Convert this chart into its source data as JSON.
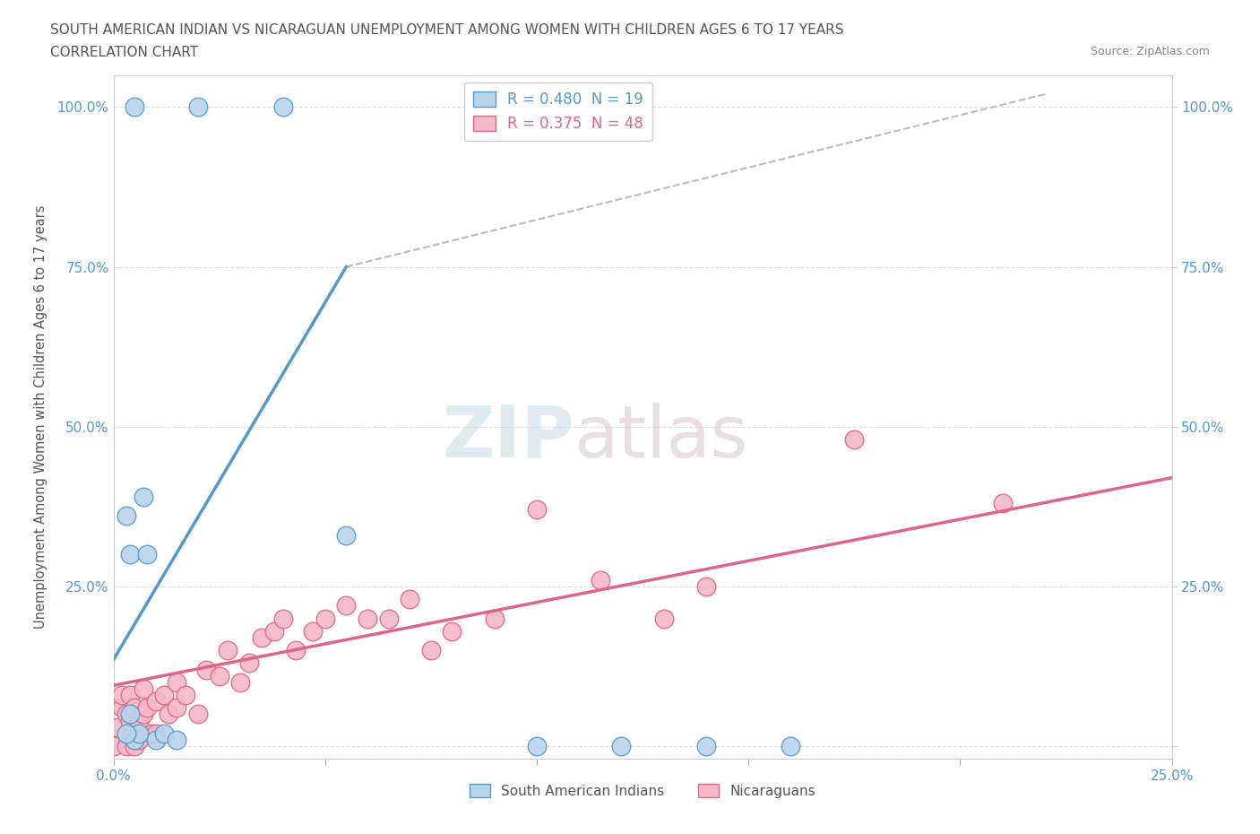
{
  "title_line1": "SOUTH AMERICAN INDIAN VS NICARAGUAN UNEMPLOYMENT AMONG WOMEN WITH CHILDREN AGES 6 TO 17 YEARS",
  "title_line2": "CORRELATION CHART",
  "source_text": "Source: ZipAtlas.com",
  "ylabel": "Unemployment Among Women with Children Ages 6 to 17 years",
  "xlim": [
    0.0,
    0.25
  ],
  "ylim": [
    -0.02,
    1.05
  ],
  "xtick_vals": [
    0.0,
    0.05,
    0.1,
    0.15,
    0.2,
    0.25
  ],
  "xtick_labels": [
    "0.0%",
    "",
    "",
    "",
    "",
    "25.0%"
  ],
  "ytick_vals": [
    0.0,
    0.25,
    0.5,
    0.75,
    1.0
  ],
  "ytick_labels": [
    "",
    "25.0%",
    "50.0%",
    "75.0%",
    "100.0%"
  ],
  "color_blue_fill": "#b8d4ed",
  "color_blue_edge": "#5599cc",
  "color_pink_fill": "#f5b8c8",
  "color_pink_edge": "#dd6688",
  "color_blue_line": "#5599cc",
  "color_pink_line": "#dd6688",
  "color_dash": "#bbbbbb",
  "sa_x": [
    0.005,
    0.02,
    0.04,
    0.003,
    0.004,
    0.005,
    0.006,
    0.007,
    0.008,
    0.01,
    0.012,
    0.015,
    0.003,
    0.004,
    0.12,
    0.14,
    0.16,
    0.055,
    0.1
  ],
  "sa_y": [
    1.0,
    1.0,
    1.0,
    0.36,
    0.3,
    0.01,
    0.02,
    0.39,
    0.3,
    0.01,
    0.02,
    0.01,
    0.02,
    0.05,
    0.0,
    0.0,
    0.0,
    0.33,
    0.0
  ],
  "nic_x": [
    0.0,
    0.001,
    0.002,
    0.002,
    0.003,
    0.003,
    0.004,
    0.004,
    0.005,
    0.005,
    0.006,
    0.006,
    0.007,
    0.007,
    0.008,
    0.009,
    0.01,
    0.01,
    0.012,
    0.013,
    0.015,
    0.015,
    0.017,
    0.02,
    0.022,
    0.025,
    0.027,
    0.03,
    0.032,
    0.035,
    0.038,
    0.04,
    0.043,
    0.047,
    0.05,
    0.055,
    0.06,
    0.065,
    0.07,
    0.075,
    0.08,
    0.09,
    0.1,
    0.115,
    0.13,
    0.14,
    0.175,
    0.21
  ],
  "nic_y": [
    0.0,
    0.03,
    0.06,
    0.08,
    0.0,
    0.05,
    0.04,
    0.08,
    0.0,
    0.06,
    0.01,
    0.04,
    0.05,
    0.09,
    0.06,
    0.02,
    0.02,
    0.07,
    0.08,
    0.05,
    0.1,
    0.06,
    0.08,
    0.05,
    0.12,
    0.11,
    0.15,
    0.1,
    0.13,
    0.17,
    0.18,
    0.2,
    0.15,
    0.18,
    0.2,
    0.22,
    0.2,
    0.2,
    0.23,
    0.15,
    0.18,
    0.2,
    0.37,
    0.26,
    0.2,
    0.25,
    0.48,
    0.38
  ],
  "blue_line_x": [
    0.0,
    0.055
  ],
  "blue_line_y": [
    0.135,
    0.75
  ],
  "pink_line_x": [
    0.0,
    0.25
  ],
  "pink_line_y": [
    0.095,
    0.42
  ],
  "dash_line_x": [
    0.055,
    0.22
  ],
  "dash_line_y": [
    0.75,
    1.02
  ]
}
